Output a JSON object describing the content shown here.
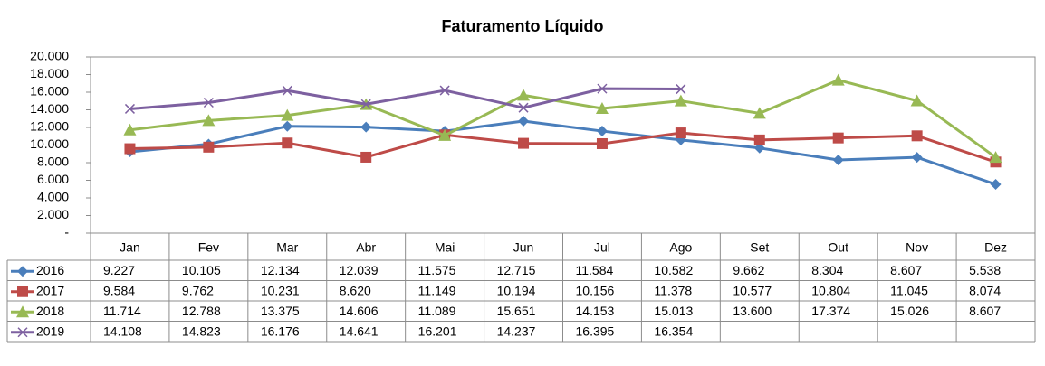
{
  "chart_data": {
    "type": "line",
    "title": "Faturamento Líquido",
    "categories": [
      "Jan",
      "Fev",
      "Mar",
      "Abr",
      "Mai",
      "Jun",
      "Jul",
      "Ago",
      "Set",
      "Out",
      "Nov",
      "Dez"
    ],
    "series": [
      {
        "name": "2016",
        "color": "#4a7ebb",
        "marker": "diamond",
        "values": [
          9227,
          10105,
          12134,
          12039,
          11575,
          12715,
          11584,
          10582,
          9662,
          8304,
          8607,
          5538
        ],
        "value_labels": [
          "9.227",
          "10.105",
          "12.134",
          "12.039",
          "11.575",
          "12.715",
          "11.584",
          "10.582",
          "9.662",
          "8.304",
          "8.607",
          "5.538"
        ]
      },
      {
        "name": "2017",
        "color": "#be4b48",
        "marker": "square",
        "values": [
          9584,
          9762,
          10231,
          8620,
          11149,
          10194,
          10156,
          11378,
          10577,
          10804,
          11045,
          8074
        ],
        "value_labels": [
          "9.584",
          "9.762",
          "10.231",
          "8.620",
          "11.149",
          "10.194",
          "10.156",
          "11.378",
          "10.577",
          "10.804",
          "11.045",
          "8.074"
        ]
      },
      {
        "name": "2018",
        "color": "#98b954",
        "marker": "triangle",
        "values": [
          11714,
          12788,
          13375,
          14606,
          11089,
          15651,
          14153,
          15013,
          13600,
          17374,
          15026,
          8607
        ],
        "value_labels": [
          "11.714",
          "12.788",
          "13.375",
          "14.606",
          "11.089",
          "15.651",
          "14.153",
          "15.013",
          "13.600",
          "17.374",
          "15.026",
          "8.607"
        ]
      },
      {
        "name": "2019",
        "color": "#7d60a0",
        "marker": "x",
        "values": [
          14108,
          14823,
          16176,
          14641,
          16201,
          14237,
          16395,
          16354,
          null,
          null,
          null,
          null
        ],
        "value_labels": [
          "14.108",
          "14.823",
          "16.176",
          "14.641",
          "16.201",
          "14.237",
          "16.395",
          "16.354",
          null,
          null,
          null,
          null
        ]
      }
    ],
    "ylim": [
      0,
      20000
    ],
    "yticks": [
      {
        "value": 0,
        "label": "-"
      },
      {
        "value": 2000,
        "label": "2.000"
      },
      {
        "value": 4000,
        "label": "4.000"
      },
      {
        "value": 6000,
        "label": "6.000"
      },
      {
        "value": 8000,
        "label": "8.000"
      },
      {
        "value": 10000,
        "label": "10.000"
      },
      {
        "value": 12000,
        "label": "12.000"
      },
      {
        "value": 14000,
        "label": "14.000"
      },
      {
        "value": 16000,
        "label": "16.000"
      },
      {
        "value": 18000,
        "label": "18.000"
      },
      {
        "value": 20000,
        "label": "20.000"
      }
    ],
    "grid": false
  }
}
